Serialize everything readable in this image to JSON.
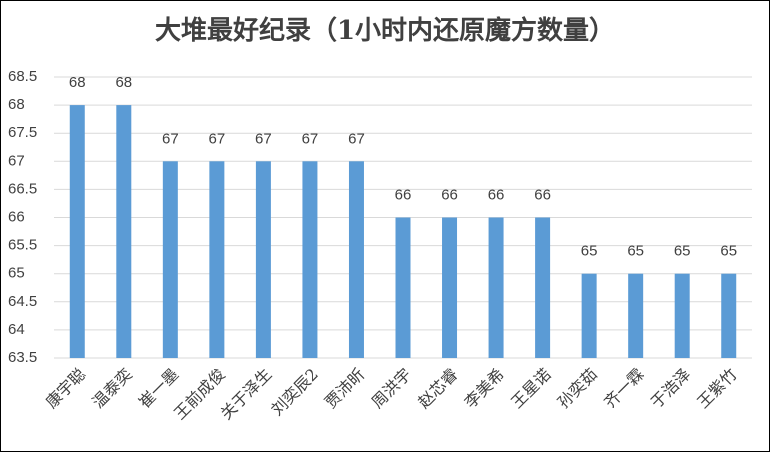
{
  "chart_data": {
    "type": "bar",
    "title": "大堆最好纪录（1小时内还原魔方数量）",
    "categories": [
      "康宇聪",
      "温泰奕",
      "崔一墨",
      "王前成俊",
      "关于泽生",
      "刘奕辰2",
      "贾沛昕",
      "周洪宇",
      "赵芯睿",
      "李美希",
      "王星诺",
      "孙奕茹",
      "齐一霖",
      "于浩泽",
      "王紫竹"
    ],
    "values": [
      68,
      68,
      67,
      67,
      67,
      67,
      67,
      66,
      66,
      66,
      66,
      65,
      65,
      65,
      65
    ],
    "color": "#5b9bd5",
    "ylim": [
      63.5,
      68.5
    ],
    "yticks": [
      63.5,
      64,
      64.5,
      65,
      65.5,
      66,
      66.5,
      67,
      67.5,
      68,
      68.5
    ],
    "grid": true
  }
}
